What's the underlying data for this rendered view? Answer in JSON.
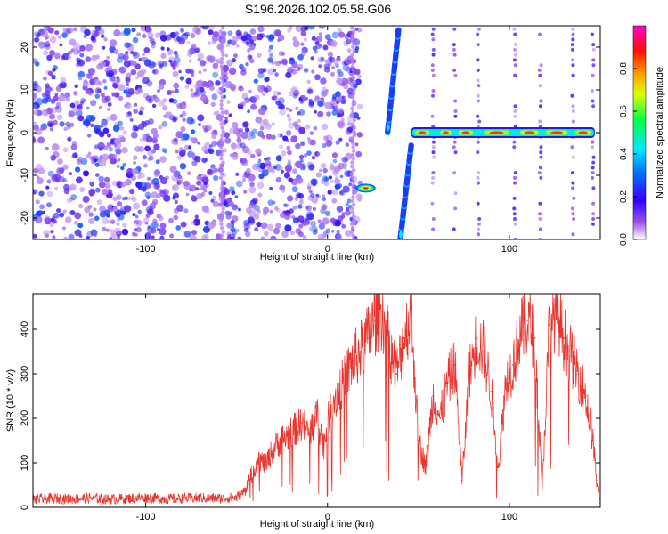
{
  "figure_title": "S196.2026.102.05.58.G06",
  "chart_data": [
    {
      "type": "heatmap",
      "title": "S196.2026.102.05.58.G06",
      "xlabel": "Height of straight line (km)",
      "ylabel": "Frequency (Hz)",
      "xlim": [
        -162,
        150
      ],
      "ylim": [
        -25,
        25
      ],
      "xticks": [
        -100,
        0,
        100
      ],
      "yticks": [
        -20,
        -10,
        0,
        10,
        20
      ],
      "xtick_labels": [
        "-100",
        "0",
        "100"
      ],
      "ytick_labels": [
        "-20",
        "-10",
        "0",
        "10",
        "20"
      ],
      "colorbar": {
        "label": "Normalized spectral amplitude",
        "range": [
          0,
          1
        ],
        "ticks": [
          0.0,
          0.2,
          0.4,
          0.6,
          0.8
        ],
        "tick_labels": [
          "0.0",
          "0.2",
          "0.4",
          "0.6",
          "0.8"
        ],
        "colors": [
          "#ffffff",
          "#7a22ee",
          "#0000ff",
          "#00e0ff",
          "#00ff66",
          "#ffff00",
          "#ff8800",
          "#ff0000",
          "#ff00cc"
        ]
      },
      "noise_region": {
        "x_range": [
          -162,
          18
        ],
        "y_range": [
          -25,
          25
        ],
        "level_range": [
          0.05,
          0.3
        ]
      },
      "features": [
        {
          "name": "diagonal streak 1",
          "x0": 33,
          "y0": 0,
          "x1": 39,
          "y1": 24,
          "level": 0.25
        },
        {
          "name": "diagonal streak 2",
          "x0": 40,
          "y0": -25,
          "x1": 46,
          "y1": -3,
          "level": 0.25
        },
        {
          "name": "short blob",
          "x": 21,
          "y": -13,
          "level": 0.9
        },
        {
          "name": "carrier line",
          "x_start": 46,
          "x_end": 147,
          "y": 0,
          "level": 0.85
        },
        {
          "name": "vertical streaks",
          "x": [
            58,
            70,
            83,
            103,
            117,
            135,
            146
          ],
          "level": 0.15
        }
      ]
    },
    {
      "type": "line",
      "xlabel": "Height of straight line (km)",
      "ylabel": "SNR (10 * v/v)",
      "xlim": [
        -162,
        150
      ],
      "ylim": [
        0,
        480
      ],
      "xticks": [
        -100,
        0,
        100
      ],
      "yticks": [
        0,
        100,
        200,
        300,
        400
      ],
      "xtick_labels": [
        "-100",
        "0",
        "100"
      ],
      "ytick_labels": [
        "0",
        "100",
        "200",
        "300",
        "400"
      ],
      "color": "#e8352e",
      "series": [
        {
          "name": "SNR",
          "x": [
            -162,
            -150,
            -140,
            -130,
            -120,
            -110,
            -100,
            -90,
            -80,
            -70,
            -60,
            -50,
            -46,
            -42,
            -38,
            -34,
            -30,
            -26,
            -22,
            -18,
            -14,
            -10,
            -6,
            -2,
            2,
            6,
            10,
            14,
            18,
            22,
            26,
            30,
            34,
            38,
            42,
            46,
            50,
            54,
            58,
            62,
            66,
            70,
            74,
            78,
            82,
            86,
            90,
            94,
            98,
            102,
            106,
            110,
            114,
            118,
            122,
            126,
            130,
            134,
            138,
            142,
            146,
            148,
            150
          ],
          "values": [
            18,
            20,
            19,
            21,
            18,
            20,
            22,
            19,
            20,
            21,
            20,
            22,
            35,
            70,
            110,
            95,
            130,
            150,
            160,
            175,
            190,
            165,
            210,
            140,
            230,
            260,
            290,
            330,
            350,
            380,
            420,
            440,
            360,
            300,
            380,
            440,
            150,
            90,
            250,
            200,
            280,
            320,
            60,
            300,
            380,
            350,
            260,
            90,
            280,
            320,
            390,
            420,
            380,
            40,
            410,
            440,
            380,
            340,
            300,
            250,
            150,
            60,
            10
          ]
        }
      ]
    }
  ]
}
